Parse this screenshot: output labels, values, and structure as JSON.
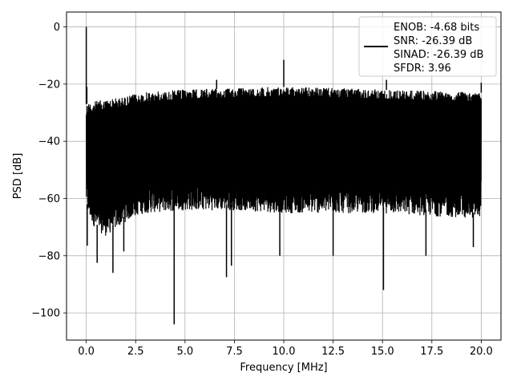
{
  "chart_data": {
    "type": "line",
    "xlabel": "Frequency [MHz]",
    "ylabel": "PSD [dB]",
    "xlim": [
      -1,
      21
    ],
    "ylim": [
      -109.5,
      5.2
    ],
    "xticks": [
      0.0,
      2.5,
      5.0,
      7.5,
      10.0,
      12.5,
      15.0,
      17.5,
      20.0
    ],
    "xtick_labels": [
      "0.0",
      "2.5",
      "5.0",
      "7.5",
      "10.0",
      "12.5",
      "15.0",
      "17.5",
      "20.0"
    ],
    "yticks": [
      0,
      -20,
      -40,
      -60,
      -80,
      -100
    ],
    "ytick_labels": [
      "0",
      "−20",
      "−40",
      "−60",
      "−80",
      "−100"
    ],
    "grid": true,
    "legend_position": "top-right",
    "legend_lines": [
      "ENOB: -4.68 bits",
      "SNR: -26.39 dB",
      "SINAD: -26.39 dB",
      "SFDR: 3.96"
    ],
    "series": [
      {
        "color": "#000000",
        "envelope": {
          "x": [
            0.0,
            0.1,
            0.5,
            1.0,
            2.0,
            2.5,
            3.0,
            5.0,
            7.5,
            10.0,
            12.5,
            15.0,
            17.5,
            19.9,
            20.0
          ],
          "upper": [
            -27.0,
            -26.5,
            -26.0,
            -25.5,
            -24.5,
            -23.5,
            -23.0,
            -22.0,
            -21.5,
            -21.0,
            -21.5,
            -22.0,
            -22.5,
            -23.0,
            -23.0
          ],
          "lower": [
            -60.0,
            -64.0,
            -69.0,
            -71.0,
            -66.0,
            -64.0,
            -63.0,
            -62.0,
            -62.0,
            -63.0,
            -63.0,
            -63.0,
            -64.0,
            -65.0,
            -60.0
          ]
        },
        "peaks": [
          {
            "x": 0.0,
            "y": 0.0
          },
          {
            "x": 0.03,
            "y": -21.0
          },
          {
            "x": 10.0,
            "y": -11.5
          },
          {
            "x": 6.6,
            "y": -18.5
          },
          {
            "x": 15.2,
            "y": -18.5
          },
          {
            "x": 20.0,
            "y": -19.5
          }
        ],
        "dips": [
          {
            "x": 0.05,
            "y": -76.5
          },
          {
            "x": 0.55,
            "y": -82.5
          },
          {
            "x": 1.35,
            "y": -86.0
          },
          {
            "x": 1.9,
            "y": -78.5
          },
          {
            "x": 4.45,
            "y": -104.0
          },
          {
            "x": 7.1,
            "y": -87.5
          },
          {
            "x": 7.35,
            "y": -83.5
          },
          {
            "x": 9.8,
            "y": -80.0
          },
          {
            "x": 12.5,
            "y": -80.0
          },
          {
            "x": 15.05,
            "y": -92.0
          },
          {
            "x": 17.2,
            "y": -80.0
          },
          {
            "x": 19.6,
            "y": -77.0
          }
        ]
      }
    ]
  }
}
